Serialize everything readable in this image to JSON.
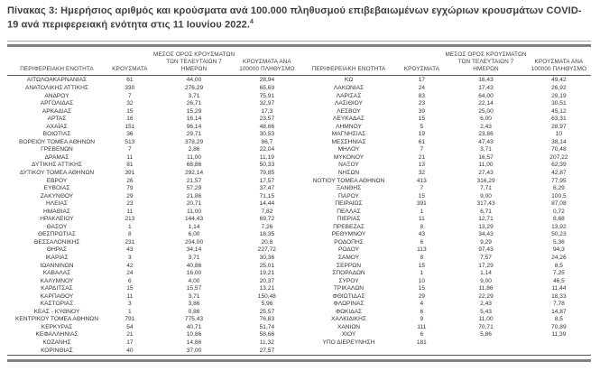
{
  "title": {
    "text": "Πίνακας 3:  Ημερήσιος αριθμός και κρούσματα ανά 100.000 πληθυσμού επιβεβαιωμένων εγχώριων κρουσμάτων COVID-19 ανά περιφερειακή ενότητα στις 11 Ιουνίου 2022.",
    "footnote_marker": "4"
  },
  "colors": {
    "title_text": "#3f3f3f",
    "body_text": "#333333",
    "rule_thick": "#808080",
    "rule_thin": "#595959"
  },
  "table": {
    "columns": [
      "ΠΕΡΙΦΕΡΕΙΑΚΗ ΕΝΟΤΗΤΑ",
      "ΚΡΟΥΣΜΑΤΑ",
      "ΜΕΣΟΣ ΟΡΟΣ ΚΡΟΥΣΜΑΤΩΝ ΤΩΝ ΤΕΛΕΥΤΑΙΩΝ 7 ΗΜΕΡΩΝ",
      "ΚΡΟΥΣΜΑΤΑ ΑΝΑ 100000 ΠΛΗΘΥΣΜΟ"
    ],
    "left_rows": [
      [
        "ΑΙΤΩΛΟΑΚΑΡΝΑΝΙΑΣ",
        "61",
        "44,00",
        "28,94"
      ],
      [
        "ΑΝΑΤΟΛΙΚΗΣ ΑΤΤΙΚΗΣ",
        "330",
        "276,29",
        "65,69"
      ],
      [
        "ΑΝΔΡΟΥ",
        "7",
        "3,71",
        "75,91"
      ],
      [
        "ΑΡΓΟΛΙΔΑΣ",
        "32",
        "26,71",
        "32,97"
      ],
      [
        "ΑΡΚΑΔΙΑΣ",
        "15",
        "15,29",
        "17,3"
      ],
      [
        "ΑΡΤΑΣ",
        "16",
        "16,14",
        "23,57"
      ],
      [
        "ΑΧΑΪΑΣ",
        "151",
        "96,14",
        "48,66"
      ],
      [
        "ΒΟΙΩΤΙΑΣ",
        "36",
        "29,71",
        "30,53"
      ],
      [
        "ΒΟΡΕΙΟΥ ΤΟΜΕΑ ΑΘΗΝΩΝ",
        "513",
        "378,29",
        "86,7"
      ],
      [
        "ΓΡΕΒΕΝΩΝ",
        "7",
        "2,86",
        "22,04"
      ],
      [
        "ΔΡΑΜΑΣ",
        "11",
        "11,00",
        "11,19"
      ],
      [
        "ΔΥΤΙΚΗΣ ΑΤΤΙΚΗΣ",
        "81",
        "68,86",
        "50,33"
      ],
      [
        "ΔΥΤΙΚΟΥ ΤΟΜΕΑ ΑΘΗΝΩΝ",
        "391",
        "292,14",
        "79,85"
      ],
      [
        "ΕΒΡΟΥ",
        "26",
        "21,57",
        "17,57"
      ],
      [
        "ΕΥΒΟΙΑΣ",
        "79",
        "57,29",
        "37,47"
      ],
      [
        "ΖΑΚΥΝΘΟΥ",
        "29",
        "21,86",
        "71,15"
      ],
      [
        "ΗΛΕΙΑΣ",
        "23",
        "20,71",
        "14,44"
      ],
      [
        "ΗΜΑΘΙΑΣ",
        "11",
        "11,00",
        "7,82"
      ],
      [
        "ΗΡΑΚΛΕΙΟΥ",
        "213",
        "144,43",
        "69,72"
      ],
      [
        "ΘΑΣΟΥ",
        "1",
        "1,14",
        "7,26"
      ],
      [
        "ΘΕΣΠΡΩΤΙΑΣ",
        "8",
        "6,00",
        "18,35"
      ],
      [
        "ΘΕΣΣΑΛΟΝΙΚΗΣ",
        "231",
        "204,00",
        "20,8"
      ],
      [
        "ΘΗΡΑΣ",
        "43",
        "34,14",
        "227,72"
      ],
      [
        "ΙΚΑΡΙΑΣ",
        "3",
        "3,71",
        "30,36"
      ],
      [
        "ΙΩΑΝΝΙΝΩΝ",
        "42",
        "40,86",
        "25,01"
      ],
      [
        "ΚΑΒΑΛΑΣ",
        "24",
        "16,00",
        "19,21"
      ],
      [
        "ΚΑΛΥΜΝΟΥ",
        "6",
        "4,00",
        "20,37"
      ],
      [
        "ΚΑΡΔΙΤΣΑΣ",
        "15",
        "15,57",
        "13,21"
      ],
      [
        "ΚΑΡΠΑΘΟΥ",
        "11",
        "3,71",
        "150,48"
      ],
      [
        "ΚΑΣΤΟΡΙΑΣ",
        "3",
        "3,86",
        "5,96"
      ],
      [
        "ΚΕΑΣ - ΚΥΘΝΟΥ",
        "1",
        "0,86",
        "25,57"
      ],
      [
        "ΚΕΝΤΡΙΚΟΥ ΤΟΜΕΑ ΑΘΗΝΩΝ",
        "791",
        "775,43",
        "76,83"
      ],
      [
        "ΚΕΡΚΥΡΑΣ",
        "54",
        "40,71",
        "51,74"
      ],
      [
        "ΚΕΦΑΛΛΗΝΙΑΣ",
        "21",
        "10,86",
        "58,66"
      ],
      [
        "ΚΟΖΑΝΗΣ",
        "17",
        "14,86",
        "11,32"
      ],
      [
        "ΚΟΡΙΝΘΙΑΣ",
        "40",
        "37,00",
        "27,57"
      ]
    ],
    "right_rows": [
      [
        "ΚΩ",
        "17",
        "16,43",
        "49,42"
      ],
      [
        "ΛΑΚΩΝΙΑΣ",
        "24",
        "17,43",
        "26,92"
      ],
      [
        "ΛΑΡΙΣΑΣ",
        "83",
        "64,00",
        "29,19"
      ],
      [
        "ΛΑΣΙΘΙΟΥ",
        "23",
        "22,14",
        "30,51"
      ],
      [
        "ΛΕΣΒΟΥ",
        "39",
        "25,00",
        "45,12"
      ],
      [
        "ΛΕΥΚΑΔΑΣ",
        "15",
        "6,00",
        "63,31"
      ],
      [
        "ΛΗΜΝΟΥ",
        "5",
        "2,43",
        "28,97"
      ],
      [
        "ΜΑΓΝΗΣΙΑΣ",
        "19",
        "23,86",
        "10"
      ],
      [
        "ΜΕΣΣΗΝΙΑΣ",
        "61",
        "47,43",
        "38,14"
      ],
      [
        "ΜΗΛΟΥ",
        "7",
        "3,71",
        "70,48"
      ],
      [
        "ΜΥΚΟΝΟΥ",
        "21",
        "16,57",
        "207,22"
      ],
      [
        "ΝΑΞΟΥ",
        "13",
        "11,00",
        "62,39"
      ],
      [
        "ΝΗΣΩΝ",
        "32",
        "27,43",
        "42,87"
      ],
      [
        "ΝΟΤΙΟΥ ΤΟΜΕΑ ΑΘΗΝΩΝ",
        "413",
        "316,29",
        "77,95"
      ],
      [
        "ΞΑΝΘΗΣ",
        "7",
        "7,71",
        "6,29"
      ],
      [
        "ΠΑΡΟΥ",
        "15",
        "9,00",
        "100,5"
      ],
      [
        "ΠΕΙΡΑΙΩΣ",
        "391",
        "317,43",
        "87,08"
      ],
      [
        "ΠΕΛΛΑΣ",
        "1",
        "6,71",
        "0,72"
      ],
      [
        "ΠΙΕΡΙΑΣ",
        "11",
        "12,71",
        "8,68"
      ],
      [
        "ΠΡΕΒΕΖΑΣ",
        "8",
        "13,29",
        "13,92"
      ],
      [
        "ΡΕΘΥΜΝΟΥ",
        "43",
        "34,43",
        "50,23"
      ],
      [
        "ΡΟΔΟΠΗΣ",
        "6",
        "9,29",
        "5,36"
      ],
      [
        "ΡΟΔΟΥ",
        "113",
        "97,43",
        "94,3"
      ],
      [
        "ΣΑΜΟΥ",
        "8",
        "7,57",
        "24,26"
      ],
      [
        "ΣΕΡΡΩΝ",
        "15",
        "17,29",
        "8,5"
      ],
      [
        "ΣΠΟΡΑΔΩΝ",
        "1",
        "1,14",
        "7,25"
      ],
      [
        "ΣΥΡΟΥ",
        "10",
        "9,00",
        "46,5"
      ],
      [
        "ΤΡΙΚΑΛΩΝ",
        "15",
        "11,86",
        "11,44"
      ],
      [
        "ΦΘΙΩΤΙΔΑΣ",
        "29",
        "22,29",
        "18,33"
      ],
      [
        "ΦΛΩΡΙΝΑΣ",
        "4",
        "2,43",
        "7,78"
      ],
      [
        "ΦΩΚΙΔΑΣ",
        "6",
        "5,43",
        "14,87"
      ],
      [
        "ΧΑΛΚΙΔΙΚΗΣ",
        "9",
        "11,00",
        "8,5"
      ],
      [
        "ΧΑΝΙΩΝ",
        "111",
        "70,71",
        "70,89"
      ],
      [
        "ΧΙΟΥ",
        "6",
        "5,86",
        "11,39"
      ],
      [
        "ΥΠΟ ΔΙΕΡΕΥΝΗΣΗ",
        "181",
        "",
        ""
      ]
    ]
  }
}
